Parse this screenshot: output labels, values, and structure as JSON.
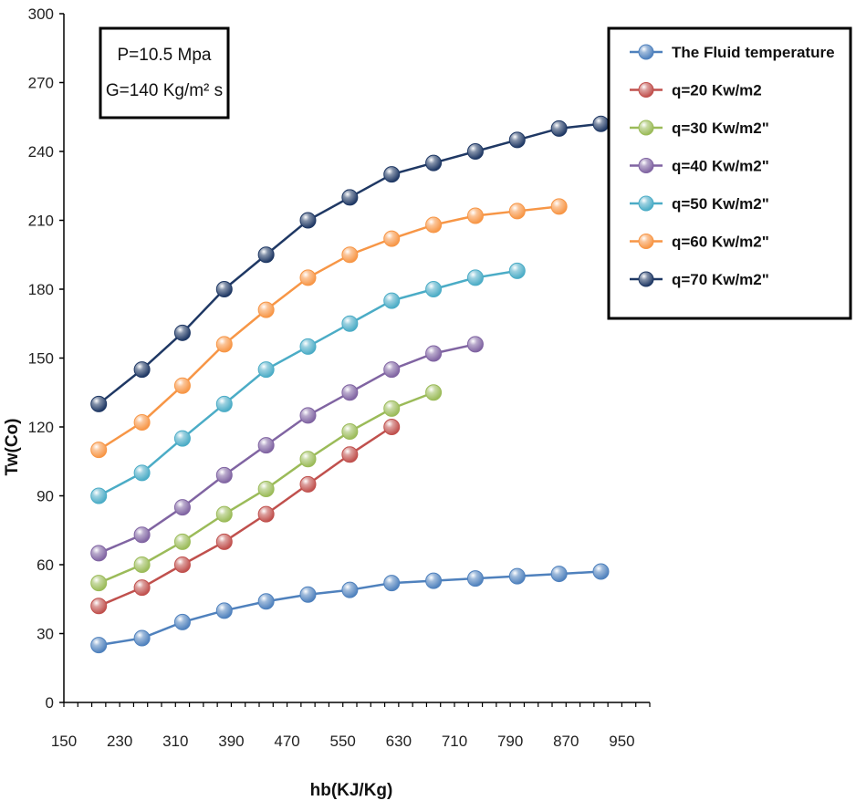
{
  "chart_data": {
    "type": "line",
    "title": "",
    "xlabel": "hb(KJ/Kg)",
    "ylabel": "Tw(Co)",
    "xlim": [
      150,
      990
    ],
    "ylim": [
      0,
      300
    ],
    "xticks": [
      150,
      230,
      310,
      390,
      470,
      550,
      630,
      710,
      790,
      870,
      950
    ],
    "yticks": [
      0,
      30,
      60,
      90,
      120,
      150,
      180,
      210,
      240,
      270,
      300
    ],
    "grid": false,
    "legend_position": "top-right",
    "annotation": {
      "line1": "P=10.5 Mpa",
      "line2": "G=140 Kg/m² s"
    },
    "series": [
      {
        "name": "The Fluid temperature",
        "color": "#4f81bd",
        "points": [
          [
            200,
            25
          ],
          [
            262,
            28
          ],
          [
            320,
            35
          ],
          [
            380,
            40
          ],
          [
            440,
            44
          ],
          [
            500,
            47
          ],
          [
            560,
            49
          ],
          [
            620,
            52
          ],
          [
            680,
            53
          ],
          [
            740,
            54
          ],
          [
            800,
            55
          ],
          [
            860,
            56
          ],
          [
            920,
            57
          ]
        ]
      },
      {
        "name": "q=20 Kw/m2",
        "color": "#c0504d",
        "points": [
          [
            200,
            42
          ],
          [
            262,
            50
          ],
          [
            320,
            60
          ],
          [
            380,
            70
          ],
          [
            440,
            82
          ],
          [
            500,
            95
          ],
          [
            560,
            108
          ],
          [
            620,
            120
          ]
        ]
      },
      {
        "name": "q=30 Kw/m2\"",
        "color": "#9bbb59",
        "points": [
          [
            200,
            52
          ],
          [
            262,
            60
          ],
          [
            320,
            70
          ],
          [
            380,
            82
          ],
          [
            440,
            93
          ],
          [
            500,
            106
          ],
          [
            560,
            118
          ],
          [
            620,
            128
          ],
          [
            680,
            135
          ]
        ]
      },
      {
        "name": "q=40 Kw/m2\"",
        "color": "#8064a2",
        "points": [
          [
            200,
            65
          ],
          [
            262,
            73
          ],
          [
            320,
            85
          ],
          [
            380,
            99
          ],
          [
            440,
            112
          ],
          [
            500,
            125
          ],
          [
            560,
            135
          ],
          [
            620,
            145
          ],
          [
            680,
            152
          ],
          [
            740,
            156
          ]
        ]
      },
      {
        "name": "q=50 Kw/m2\"",
        "color": "#4bacc6",
        "points": [
          [
            200,
            90
          ],
          [
            262,
            100
          ],
          [
            320,
            115
          ],
          [
            380,
            130
          ],
          [
            440,
            145
          ],
          [
            500,
            155
          ],
          [
            560,
            165
          ],
          [
            620,
            175
          ],
          [
            680,
            180
          ],
          [
            740,
            185
          ],
          [
            800,
            188
          ]
        ]
      },
      {
        "name": "q=60 Kw/m2\"",
        "color": "#f79646",
        "points": [
          [
            200,
            110
          ],
          [
            262,
            122
          ],
          [
            320,
            138
          ],
          [
            380,
            156
          ],
          [
            440,
            171
          ],
          [
            500,
            185
          ],
          [
            560,
            195
          ],
          [
            620,
            202
          ],
          [
            680,
            208
          ],
          [
            740,
            212
          ],
          [
            800,
            214
          ],
          [
            860,
            216
          ]
        ]
      },
      {
        "name": "q=70 Kw/m2\"",
        "color": "#1f3864",
        "points": [
          [
            200,
            130
          ],
          [
            262,
            145
          ],
          [
            320,
            161
          ],
          [
            380,
            180
          ],
          [
            440,
            195
          ],
          [
            500,
            210
          ],
          [
            560,
            220
          ],
          [
            620,
            230
          ],
          [
            680,
            235
          ],
          [
            740,
            240
          ],
          [
            800,
            245
          ],
          [
            860,
            250
          ],
          [
            920,
            252
          ]
        ]
      }
    ]
  }
}
